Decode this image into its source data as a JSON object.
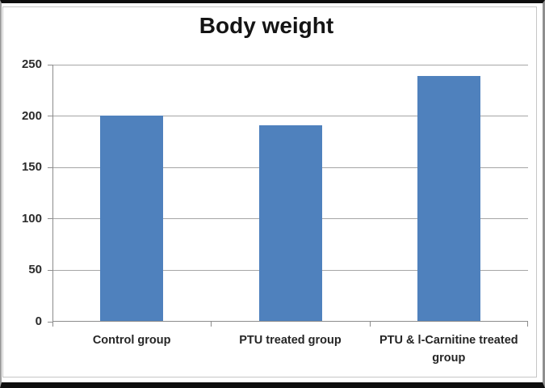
{
  "chart_data": {
    "type": "bar",
    "title": "Body weight",
    "categories": [
      "Control group",
      "PTU treated group",
      "PTU & l-Carnitine treated group"
    ],
    "values": [
      200,
      190,
      238
    ],
    "xlabel": "",
    "ylabel": "",
    "ylim": [
      0,
      250
    ],
    "yticks": [
      0,
      50,
      100,
      150,
      200,
      250
    ],
    "grid": true,
    "legend_position": "none",
    "bar_color": "#4F81BD",
    "gridline_color": "#A6A6A6",
    "axis_color": "#8C8C8C",
    "title_color": "#141414",
    "label_color": "#262626"
  }
}
